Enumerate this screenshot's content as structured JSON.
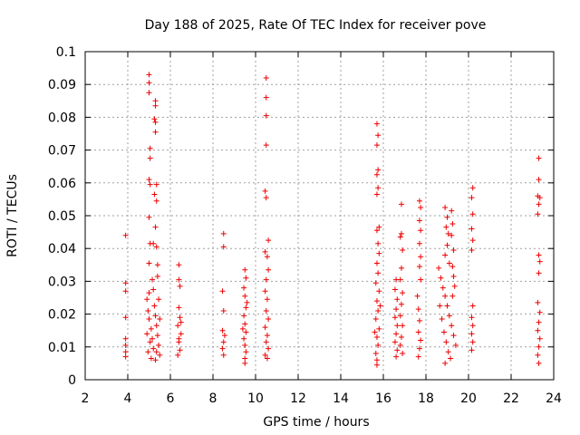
{
  "chart_data": {
    "type": "scatter",
    "title": "Day 188 of 2025, Rate Of TEC Index for receiver pove",
    "xlabel": "GPS time / hours",
    "ylabel": "ROTI / TECUs",
    "xlim": [
      2,
      24
    ],
    "ylim": [
      0,
      0.1
    ],
    "xticks": [
      2,
      4,
      6,
      8,
      10,
      12,
      14,
      16,
      18,
      20,
      22,
      24
    ],
    "yticks": [
      0,
      0.01,
      0.02,
      0.03,
      0.04,
      0.05,
      0.06,
      0.07,
      0.08,
      0.09,
      0.1
    ],
    "ytick_labels": [
      "0",
      "0.01",
      "0.02",
      "0.03",
      "0.04",
      "0.05",
      "0.06",
      "0.07",
      "0.08",
      "0.09",
      "0.1"
    ],
    "grid": true,
    "marker_color": "#ee0000",
    "series": [
      {
        "points": [
          [
            3.9,
            0.044
          ],
          [
            3.9,
            0.0295
          ],
          [
            3.9,
            0.027
          ],
          [
            3.9,
            0.019
          ],
          [
            3.9,
            0.0125
          ],
          [
            3.9,
            0.0105
          ],
          [
            3.9,
            0.0085
          ],
          [
            3.9,
            0.007
          ],
          [
            5.0,
            0.093
          ],
          [
            5.0,
            0.0905
          ],
          [
            5.0,
            0.0875
          ],
          [
            5.05,
            0.0705
          ],
          [
            5.05,
            0.0675
          ],
          [
            5.0,
            0.061
          ],
          [
            5.05,
            0.0595
          ],
          [
            5.0,
            0.0495
          ],
          [
            5.05,
            0.0415
          ],
          [
            5.0,
            0.0355
          ],
          [
            5.3,
            0.085
          ],
          [
            5.3,
            0.0835
          ],
          [
            5.25,
            0.0795
          ],
          [
            5.3,
            0.0785
          ],
          [
            5.3,
            0.0755
          ],
          [
            5.35,
            0.0595
          ],
          [
            5.25,
            0.0565
          ],
          [
            5.35,
            0.0545
          ],
          [
            5.3,
            0.0465
          ],
          [
            5.2,
            0.0415
          ],
          [
            5.35,
            0.0405
          ],
          [
            5.4,
            0.035
          ],
          [
            4.9,
            0.0245
          ],
          [
            4.95,
            0.021
          ],
          [
            5.0,
            0.0185
          ],
          [
            4.9,
            0.014
          ],
          [
            5.05,
            0.0115
          ],
          [
            4.95,
            0.0085
          ],
          [
            5.1,
            0.0065
          ],
          [
            5.15,
            0.0305
          ],
          [
            5.2,
            0.0275
          ],
          [
            5.25,
            0.0225
          ],
          [
            5.3,
            0.0195
          ],
          [
            5.35,
            0.0165
          ],
          [
            5.4,
            0.0135
          ],
          [
            5.45,
            0.0105
          ],
          [
            5.5,
            0.0075
          ],
          [
            5.1,
            0.0155
          ],
          [
            5.2,
            0.0095
          ],
          [
            5.3,
            0.006
          ],
          [
            5.4,
            0.0315
          ],
          [
            5.45,
            0.0245
          ],
          [
            5.5,
            0.0185
          ],
          [
            5.0,
            0.0265
          ],
          [
            5.15,
            0.0125
          ],
          [
            5.35,
            0.0085
          ],
          [
            6.4,
            0.035
          ],
          [
            6.4,
            0.0305
          ],
          [
            6.45,
            0.0285
          ],
          [
            6.4,
            0.022
          ],
          [
            6.45,
            0.019
          ],
          [
            6.35,
            0.0165
          ],
          [
            6.5,
            0.014
          ],
          [
            6.4,
            0.0115
          ],
          [
            6.45,
            0.009
          ],
          [
            6.35,
            0.0075
          ],
          [
            6.5,
            0.0175
          ],
          [
            6.4,
            0.0125
          ],
          [
            8.5,
            0.0445
          ],
          [
            8.5,
            0.0405
          ],
          [
            8.45,
            0.027
          ],
          [
            8.5,
            0.021
          ],
          [
            8.45,
            0.015
          ],
          [
            8.55,
            0.0135
          ],
          [
            8.5,
            0.0115
          ],
          [
            8.45,
            0.0095
          ],
          [
            8.5,
            0.0075
          ],
          [
            9.5,
            0.0335
          ],
          [
            9.55,
            0.031
          ],
          [
            9.45,
            0.028
          ],
          [
            9.5,
            0.0255
          ],
          [
            9.55,
            0.022
          ],
          [
            9.45,
            0.0195
          ],
          [
            9.5,
            0.017
          ],
          [
            9.55,
            0.0145
          ],
          [
            9.45,
            0.0125
          ],
          [
            9.5,
            0.0105
          ],
          [
            9.55,
            0.0085
          ],
          [
            9.5,
            0.0065
          ],
          [
            9.5,
            0.005
          ],
          [
            9.6,
            0.0235
          ],
          [
            9.4,
            0.0155
          ],
          [
            10.5,
            0.092
          ],
          [
            10.5,
            0.086
          ],
          [
            10.5,
            0.0805
          ],
          [
            10.5,
            0.0715
          ],
          [
            10.45,
            0.0575
          ],
          [
            10.5,
            0.0555
          ],
          [
            10.6,
            0.0425
          ],
          [
            10.45,
            0.039
          ],
          [
            10.55,
            0.0375
          ],
          [
            10.6,
            0.0335
          ],
          [
            10.5,
            0.0305
          ],
          [
            10.45,
            0.027
          ],
          [
            10.55,
            0.0245
          ],
          [
            10.5,
            0.021
          ],
          [
            10.6,
            0.0185
          ],
          [
            10.45,
            0.016
          ],
          [
            10.55,
            0.0135
          ],
          [
            10.5,
            0.0115
          ],
          [
            10.6,
            0.0095
          ],
          [
            10.45,
            0.0075
          ],
          [
            10.55,
            0.0065
          ],
          [
            15.7,
            0.078
          ],
          [
            15.75,
            0.0745
          ],
          [
            15.7,
            0.0715
          ],
          [
            15.75,
            0.064
          ],
          [
            15.7,
            0.0625
          ],
          [
            15.75,
            0.0585
          ],
          [
            15.7,
            0.0565
          ],
          [
            15.8,
            0.0465
          ],
          [
            15.7,
            0.0455
          ],
          [
            15.75,
            0.0415
          ],
          [
            15.8,
            0.0385
          ],
          [
            15.7,
            0.0355
          ],
          [
            15.75,
            0.0325
          ],
          [
            15.65,
            0.0295
          ],
          [
            15.8,
            0.027
          ],
          [
            15.7,
            0.024
          ],
          [
            15.75,
            0.021
          ],
          [
            15.65,
            0.0185
          ],
          [
            15.8,
            0.0155
          ],
          [
            15.7,
            0.013
          ],
          [
            15.75,
            0.0105
          ],
          [
            15.65,
            0.008
          ],
          [
            15.7,
            0.006
          ],
          [
            15.7,
            0.0045
          ],
          [
            15.85,
            0.0225
          ],
          [
            15.6,
            0.0145
          ],
          [
            16.6,
            0.0305
          ],
          [
            16.55,
            0.0275
          ],
          [
            16.65,
            0.0245
          ],
          [
            16.6,
            0.0215
          ],
          [
            16.55,
            0.019
          ],
          [
            16.65,
            0.0165
          ],
          [
            16.6,
            0.014
          ],
          [
            16.55,
            0.0115
          ],
          [
            16.65,
            0.009
          ],
          [
            16.6,
            0.007
          ],
          [
            16.85,
            0.0535
          ],
          [
            16.85,
            0.0445
          ],
          [
            16.8,
            0.0435
          ],
          [
            16.9,
            0.0395
          ],
          [
            16.85,
            0.034
          ],
          [
            16.8,
            0.0305
          ],
          [
            16.9,
            0.0265
          ],
          [
            16.85,
            0.023
          ],
          [
            16.8,
            0.0195
          ],
          [
            16.9,
            0.0165
          ],
          [
            16.85,
            0.013
          ],
          [
            16.8,
            0.0105
          ],
          [
            16.9,
            0.008
          ],
          [
            17.7,
            0.0545
          ],
          [
            17.75,
            0.0525
          ],
          [
            17.7,
            0.0485
          ],
          [
            17.75,
            0.0455
          ],
          [
            17.7,
            0.0415
          ],
          [
            17.75,
            0.0375
          ],
          [
            17.7,
            0.0345
          ],
          [
            17.75,
            0.0305
          ],
          [
            17.6,
            0.0255
          ],
          [
            17.65,
            0.0215
          ],
          [
            17.7,
            0.018
          ],
          [
            17.65,
            0.0145
          ],
          [
            17.75,
            0.012
          ],
          [
            17.7,
            0.0095
          ],
          [
            17.65,
            0.007
          ],
          [
            18.6,
            0.034
          ],
          [
            18.7,
            0.031
          ],
          [
            18.8,
            0.028
          ],
          [
            18.9,
            0.0255
          ],
          [
            19.0,
            0.0225
          ],
          [
            19.1,
            0.0195
          ],
          [
            19.2,
            0.0165
          ],
          [
            19.3,
            0.0135
          ],
          [
            19.4,
            0.0105
          ],
          [
            18.65,
            0.0225
          ],
          [
            18.75,
            0.0185
          ],
          [
            18.85,
            0.0145
          ],
          [
            18.95,
            0.0115
          ],
          [
            19.05,
            0.0085
          ],
          [
            19.15,
            0.0065
          ],
          [
            19.25,
            0.0255
          ],
          [
            19.35,
            0.0285
          ],
          [
            18.9,
            0.005
          ],
          [
            18.9,
            0.0525
          ],
          [
            19.0,
            0.0495
          ],
          [
            18.95,
            0.0465
          ],
          [
            19.05,
            0.0445
          ],
          [
            19.0,
            0.041
          ],
          [
            18.9,
            0.038
          ],
          [
            19.1,
            0.0355
          ],
          [
            19.2,
            0.0515
          ],
          [
            19.25,
            0.0475
          ],
          [
            19.2,
            0.044
          ],
          [
            19.3,
            0.0395
          ],
          [
            19.25,
            0.0345
          ],
          [
            19.3,
            0.0315
          ],
          [
            20.2,
            0.0585
          ],
          [
            20.15,
            0.0555
          ],
          [
            20.2,
            0.0505
          ],
          [
            20.15,
            0.046
          ],
          [
            20.2,
            0.0425
          ],
          [
            20.15,
            0.0395
          ],
          [
            20.2,
            0.0225
          ],
          [
            20.15,
            0.019
          ],
          [
            20.2,
            0.0165
          ],
          [
            20.15,
            0.014
          ],
          [
            20.2,
            0.0115
          ],
          [
            20.15,
            0.009
          ],
          [
            23.3,
            0.0675
          ],
          [
            23.3,
            0.061
          ],
          [
            23.25,
            0.056
          ],
          [
            23.35,
            0.0555
          ],
          [
            23.3,
            0.0535
          ],
          [
            23.25,
            0.0505
          ],
          [
            23.3,
            0.038
          ],
          [
            23.35,
            0.036
          ],
          [
            23.3,
            0.0325
          ],
          [
            23.25,
            0.0235
          ],
          [
            23.35,
            0.0205
          ],
          [
            23.3,
            0.0175
          ],
          [
            23.25,
            0.015
          ],
          [
            23.35,
            0.0125
          ],
          [
            23.3,
            0.01
          ],
          [
            23.25,
            0.0075
          ],
          [
            23.3,
            0.005
          ]
        ]
      }
    ]
  }
}
